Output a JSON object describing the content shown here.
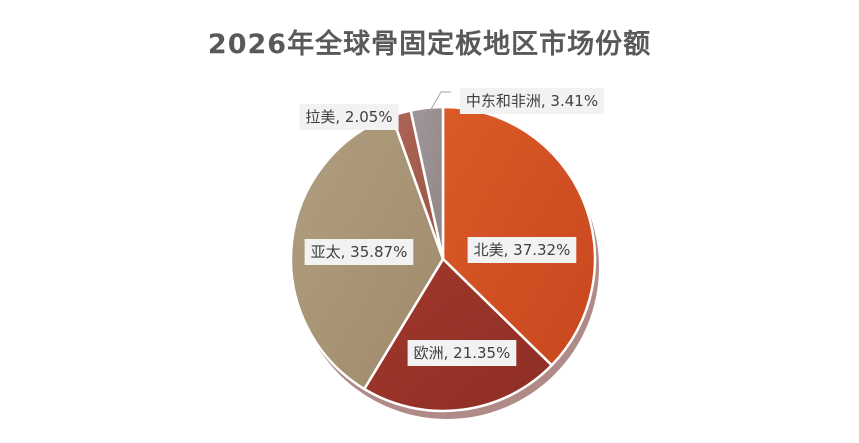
{
  "chart_data": {
    "type": "pie",
    "title": "2026年全球骨固定板地区市场份额",
    "slices": [
      {
        "label": "北美",
        "value": 37.32,
        "value_text": "37.32%",
        "color": "#c8471f",
        "color_light": "#db5a27"
      },
      {
        "label": "欧洲",
        "value": 21.35,
        "value_text": "21.35%",
        "color": "#8e2e25",
        "color_light": "#a1382c"
      },
      {
        "label": "亚太",
        "value": 35.87,
        "value_text": "35.87%",
        "color": "#a08b6b",
        "color_light": "#b09e80"
      },
      {
        "label": "拉美",
        "value": 2.05,
        "value_text": "2.05%",
        "color": "#9c5446",
        "color_light": "#ac6454"
      },
      {
        "label": "中东和非洲",
        "value": 3.41,
        "value_text": "3.41%",
        "color": "#8f8688",
        "color_light": "#a0979a"
      }
    ],
    "start_angle": "12 o'clock",
    "direction": "clockwise",
    "legend": "none",
    "data_labels": "category, percent"
  }
}
